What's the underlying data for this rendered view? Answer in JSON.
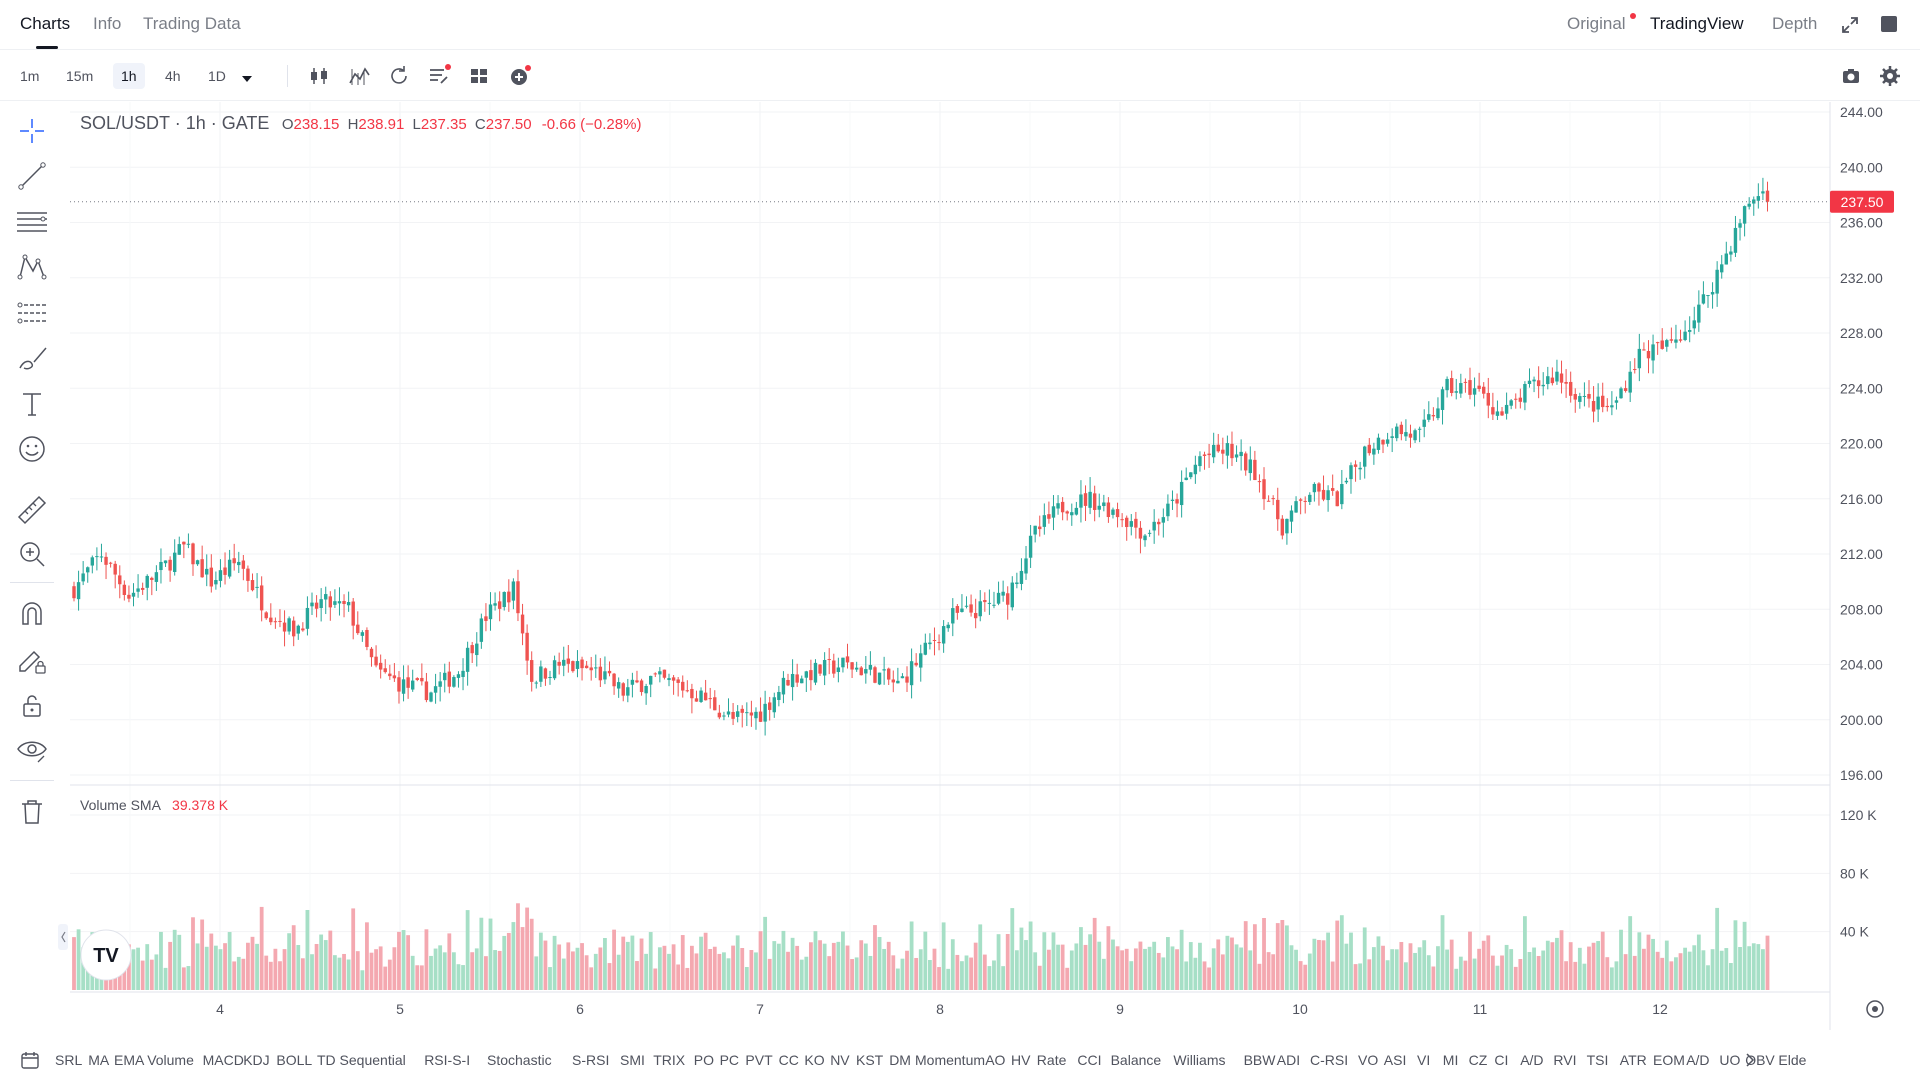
{
  "header": {
    "tabs": [
      "Charts",
      "Info",
      "Trading Data"
    ],
    "active_tab": "Charts",
    "right_tabs": [
      "Original",
      "TradingView",
      "Depth"
    ],
    "active_right_tab": "TradingView"
  },
  "toolbar": {
    "timeframes": [
      "1m",
      "15m",
      "1h",
      "4h",
      "1D"
    ],
    "active_timeframe": "1h",
    "icons": [
      "candle-type-icon",
      "indicators-icon",
      "replay-icon",
      "templates-icon",
      "layout-icon",
      "add-icon",
      "camera-icon",
      "settings-icon"
    ]
  },
  "left_tools": [
    "crosshair-icon",
    "trend-line-icon",
    "horizontal-lines-icon",
    "pattern-icon",
    "fib-icon",
    "brush-icon",
    "text-icon",
    "emoji-icon",
    "ruler-icon",
    "zoom-in-icon",
    "magnet-icon",
    "lock-drawing-icon",
    "unlock-icon",
    "eye-icon",
    "trash-icon"
  ],
  "legend": {
    "symbol": "SOL/USDT · 1h · GATE",
    "o_label": "O",
    "o": "238.15",
    "h_label": "H",
    "h": "238.91",
    "l_label": "L",
    "l": "237.35",
    "c_label": "C",
    "c": "237.50",
    "change": "-0.66 (−0.28%)"
  },
  "volume_legend": {
    "label": "Volume SMA",
    "value": "39.378 K"
  },
  "price_tag": "237.50",
  "colors": {
    "up": "#26a69a",
    "down": "#ef5350",
    "up_vol": "#a6dfc6",
    "down_vol": "#f4a8b0",
    "accent": "#2962ff"
  },
  "indicators": [
    "SRL",
    "MA",
    "EMA",
    "Volume",
    "MACD",
    "KDJ",
    "BOLL",
    "TD Sequential",
    "RSI-S-I",
    "Stochastic",
    "S-RSI",
    "SMI",
    "TRIX",
    "PO",
    "PC",
    "PVT",
    "CC",
    "KO",
    "NV",
    "KST",
    "DM",
    "Momentum",
    "AO",
    "HV",
    "Rate",
    "CCI",
    "Balance",
    "Williams",
    "BBW",
    "ADI",
    "C-RSI",
    "VO",
    "ASI",
    "VI",
    "MI",
    "CZ",
    "CI",
    "A/D",
    "RVI",
    "TSI",
    "ATR",
    "EOM",
    "A/D",
    "UO",
    "OBV",
    "Elde"
  ],
  "chart_data": {
    "type": "candlestick",
    "price_axis": {
      "ticks": [
        244,
        240,
        236,
        232,
        228,
        224,
        220,
        216,
        212,
        208,
        204,
        200,
        196
      ],
      "tick_labels": [
        "244.00",
        "240.00",
        "236.00",
        "232.00",
        "228.00",
        "224.00",
        "220.00",
        "216.00",
        "212.00",
        "208.00",
        "204.00",
        "200.00",
        "196.00"
      ],
      "range": [
        195,
        245
      ]
    },
    "volume_axis": {
      "ticks": [
        120,
        80,
        40
      ],
      "tick_labels": [
        "120 K",
        "80 K",
        "40 K"
      ],
      "range": [
        0,
        130
      ],
      "unit": "K"
    },
    "date_labels": [
      "4",
      "5",
      "6",
      "7",
      "8",
      "9",
      "10",
      "11",
      "12"
    ],
    "anchors": [
      [
        0,
        209.5
      ],
      [
        6,
        212
      ],
      [
        12,
        209
      ],
      [
        18,
        210.5
      ],
      [
        24,
        212.5
      ],
      [
        30,
        210
      ],
      [
        36,
        211.5
      ],
      [
        42,
        208
      ],
      [
        48,
        206.5
      ],
      [
        54,
        208.5
      ],
      [
        60,
        208
      ],
      [
        66,
        203.5
      ],
      [
        72,
        202.5
      ],
      [
        78,
        202
      ],
      [
        84,
        203.5
      ],
      [
        90,
        207.5
      ],
      [
        96,
        209.5
      ],
      [
        100,
        203
      ],
      [
        106,
        204
      ],
      [
        114,
        203.5
      ],
      [
        120,
        202
      ],
      [
        126,
        203
      ],
      [
        132,
        202.5
      ],
      [
        138,
        201.5
      ],
      [
        144,
        200
      ],
      [
        150,
        200.5
      ],
      [
        156,
        203
      ],
      [
        162,
        203.5
      ],
      [
        168,
        204
      ],
      [
        174,
        203.5
      ],
      [
        180,
        202.5
      ],
      [
        186,
        205
      ],
      [
        192,
        207.5
      ],
      [
        198,
        208
      ],
      [
        204,
        209
      ],
      [
        210,
        213.5
      ],
      [
        216,
        215.5
      ],
      [
        222,
        216
      ],
      [
        228,
        215
      ],
      [
        234,
        213.5
      ],
      [
        240,
        215.5
      ],
      [
        246,
        219
      ],
      [
        252,
        219.5
      ],
      [
        258,
        218
      ],
      [
        264,
        214
      ],
      [
        270,
        216.5
      ],
      [
        276,
        216
      ],
      [
        282,
        219.5
      ],
      [
        288,
        221
      ],
      [
        294,
        220.5
      ],
      [
        300,
        224
      ],
      [
        306,
        224
      ],
      [
        312,
        222
      ],
      [
        318,
        224
      ],
      [
        324,
        225
      ],
      [
        330,
        223
      ],
      [
        336,
        222.5
      ],
      [
        342,
        226.5
      ],
      [
        348,
        227
      ],
      [
        354,
        229
      ],
      [
        360,
        233
      ],
      [
        366,
        237.5
      ],
      [
        369,
        238.2
      ],
      [
        370,
        237.5
      ]
    ],
    "last_price": 237.5,
    "volume_sma": 39.378
  }
}
